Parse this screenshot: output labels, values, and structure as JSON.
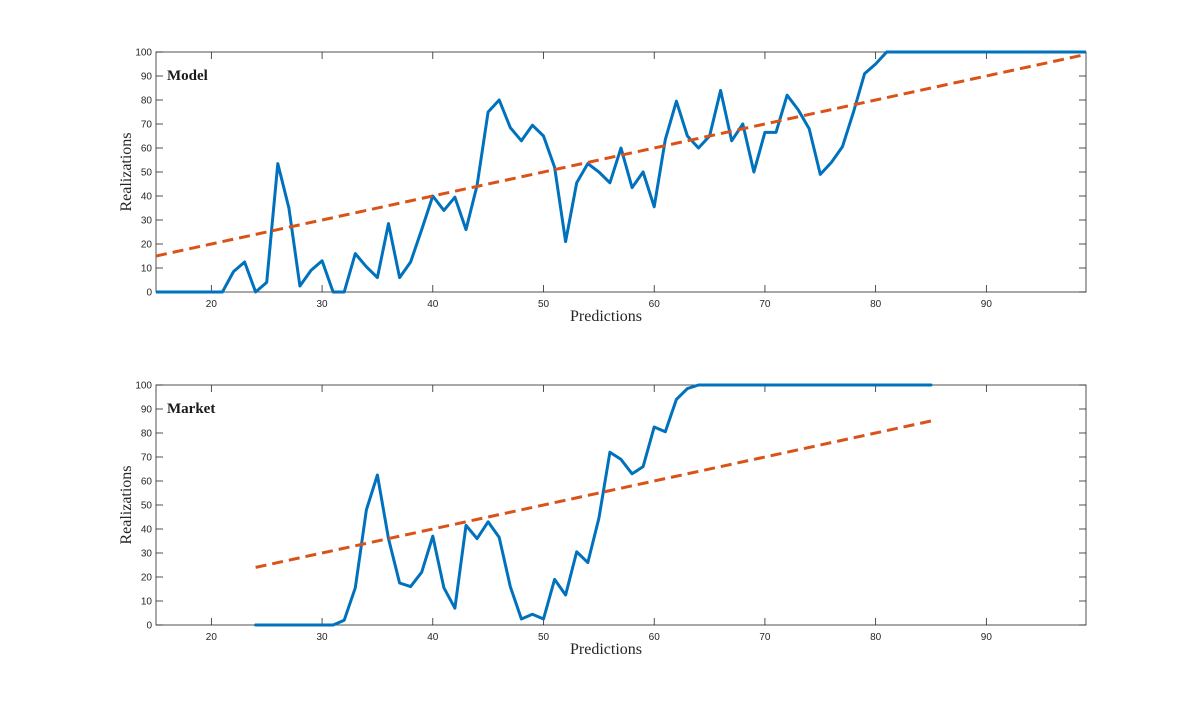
{
  "colors": {
    "realized": "#0072BD",
    "diagonal": "#D95319",
    "axis": "#262626",
    "background": "#ffffff"
  },
  "chart_data": [
    {
      "type": "line",
      "panel_label": "Model",
      "xlabel": "Predictions",
      "ylabel": "Realizations",
      "xlim": [
        15,
        99
      ],
      "ylim": [
        0,
        100
      ],
      "xticks": [
        20,
        30,
        40,
        50,
        60,
        70,
        80,
        90
      ],
      "yticks": [
        0,
        10,
        20,
        30,
        40,
        50,
        60,
        70,
        80,
        90,
        100
      ],
      "grid": false,
      "series": [
        {
          "style": "solid",
          "x": [
            15,
            16,
            17,
            18,
            19,
            20,
            21,
            22,
            23,
            24,
            25,
            26,
            27,
            28,
            29,
            30,
            31,
            32,
            33,
            34,
            35,
            36,
            37,
            38,
            39,
            40,
            41,
            42,
            43,
            44,
            45,
            46,
            47,
            48,
            49,
            50,
            51,
            52,
            53,
            54,
            55,
            56,
            57,
            58,
            59,
            60,
            61,
            62,
            63,
            64,
            65,
            66,
            67,
            68,
            69,
            70,
            71,
            72,
            73,
            74,
            75,
            76,
            77,
            78,
            79,
            80,
            81,
            82,
            83,
            84,
            85,
            86,
            87,
            88,
            89,
            90,
            91,
            92,
            93,
            94,
            95,
            96,
            97,
            98,
            99
          ],
          "y": [
            0,
            0,
            0,
            0,
            0,
            0,
            0,
            8.5,
            12.5,
            0,
            4,
            53.5,
            35,
            2.5,
            9,
            13,
            0,
            0,
            16,
            10.5,
            6,
            28.5,
            6,
            12.5,
            26,
            40,
            34,
            39.5,
            26,
            44.5,
            75,
            80,
            68.5,
            63,
            69.5,
            65,
            52,
            21,
            45.5,
            53.5,
            50,
            45.5,
            60,
            43.5,
            50,
            35.5,
            63.5,
            79.5,
            65,
            60,
            65,
            84,
            63,
            70,
            50,
            66.5,
            66.5,
            82,
            76,
            68,
            49,
            54,
            60.5,
            75,
            91,
            95,
            100,
            100,
            100,
            100,
            100,
            100,
            100,
            100,
            100,
            100,
            100,
            100,
            100,
            100,
            100,
            100,
            100,
            100,
            100
          ]
        },
        {
          "style": "dashed",
          "x": [
            15,
            99
          ],
          "y": [
            15,
            99
          ]
        }
      ]
    },
    {
      "type": "line",
      "panel_label": "Market",
      "xlabel": "Predictions",
      "ylabel": "Realizations",
      "xlim": [
        15,
        99
      ],
      "ylim": [
        0,
        100
      ],
      "xticks": [
        20,
        30,
        40,
        50,
        60,
        70,
        80,
        90
      ],
      "yticks": [
        0,
        10,
        20,
        30,
        40,
        50,
        60,
        70,
        80,
        90,
        100
      ],
      "grid": false,
      "series": [
        {
          "style": "solid",
          "x": [
            24,
            25,
            26,
            27,
            28,
            29,
            30,
            31,
            32,
            33,
            34,
            35,
            36,
            37,
            38,
            39,
            40,
            41,
            42,
            43,
            44,
            45,
            46,
            47,
            48,
            49,
            50,
            51,
            52,
            53,
            54,
            55,
            56,
            57,
            58,
            59,
            60,
            61,
            62,
            63,
            64,
            65,
            66,
            67,
            68,
            69,
            70,
            71,
            72,
            73,
            74,
            75,
            76,
            77,
            78,
            79,
            80,
            81,
            82,
            83,
            84,
            85
          ],
          "y": [
            0,
            0,
            0,
            0,
            0,
            0,
            0,
            0,
            2,
            15.5,
            48,
            62.5,
            36,
            17.5,
            16,
            22,
            37,
            15.5,
            7,
            41.5,
            36,
            43,
            36.5,
            16,
            2.5,
            4.5,
            2.5,
            19,
            12.5,
            30.5,
            26,
            44.5,
            72,
            69,
            63,
            66,
            82.5,
            80.5,
            94,
            98.5,
            100,
            100,
            100,
            100,
            100,
            100,
            100,
            100,
            100,
            100,
            100,
            100,
            100,
            100,
            100,
            100,
            100,
            100,
            100,
            100,
            100,
            100
          ]
        },
        {
          "style": "dashed",
          "x": [
            24,
            85
          ],
          "y": [
            24,
            85
          ]
        }
      ]
    }
  ]
}
